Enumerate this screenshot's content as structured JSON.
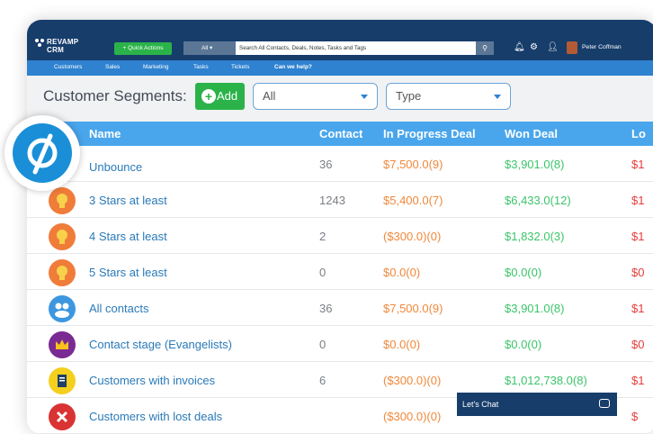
{
  "brand": {
    "name_line1": "REVAMP",
    "name_line2": "CRM"
  },
  "topbar": {
    "quick_actions": "+ Quick Actions",
    "search_scope": "All",
    "search_placeholder": "Search All Contacts, Deals, Notes, Tasks and Tags",
    "user_name": "Peter Coffman"
  },
  "nav": {
    "items": [
      "Customers",
      "Sales",
      "Marketing",
      "Tasks",
      "Tickets",
      "Can we help?"
    ]
  },
  "page": {
    "title": "Customer Segments:",
    "add_label": "Add"
  },
  "filters": {
    "all": "All",
    "type": "Type"
  },
  "table": {
    "headers": [
      "Name",
      "Contact",
      "In Progress Deal",
      "Won Deal",
      "Lo"
    ],
    "rows": [
      {
        "name": "Unbounce",
        "contact": "36",
        "progress": "$7,500.0(9)",
        "won": "$3,901.0(8)",
        "lost": "$1",
        "icon": "unbounce-icon"
      },
      {
        "name": "3 Stars at least",
        "contact": "1243",
        "progress": "$5,400.0(7)",
        "won": "$6,433.0(12)",
        "lost": "$1",
        "icon": "lightbulb-icon"
      },
      {
        "name": "4 Stars at least",
        "contact": "2",
        "progress": "($300.0)(0)",
        "won": "$1,832.0(3)",
        "lost": "$1",
        "icon": "lightbulb-icon"
      },
      {
        "name": "5 Stars at least",
        "contact": "0",
        "progress": "$0.0(0)",
        "won": "$0.0(0)",
        "lost": "$0",
        "icon": "lightbulb-icon"
      },
      {
        "name": "All contacts",
        "contact": "36",
        "progress": "$7,500.0(9)",
        "won": "$3,901.0(8)",
        "lost": "$1",
        "icon": "people-icon"
      },
      {
        "name": "Contact stage (Evangelists)",
        "contact": "0",
        "progress": "$0.0(0)",
        "won": "$0.0(0)",
        "lost": "$0",
        "icon": "crown-icon"
      },
      {
        "name": "Customers with invoices",
        "contact": "6",
        "progress": "($300.0)(0)",
        "won": "$1,012,738.0(8)",
        "lost": "$1",
        "icon": "invoice-icon"
      },
      {
        "name": "Customers with lost deals",
        "contact": "",
        "progress": "($300.0)(0)",
        "won": "",
        "lost": "$",
        "icon": "lost-deal-icon"
      }
    ]
  },
  "chat": {
    "label": "Let's Chat"
  },
  "colors": {
    "topbar": "#173d6b",
    "nav": "#2e82d0",
    "header": "#49a6ec",
    "green": "#2bb34a",
    "orange": "#f0883a",
    "won": "#3bc46a",
    "lost": "#e53b3b",
    "link": "#2a7ab8"
  }
}
